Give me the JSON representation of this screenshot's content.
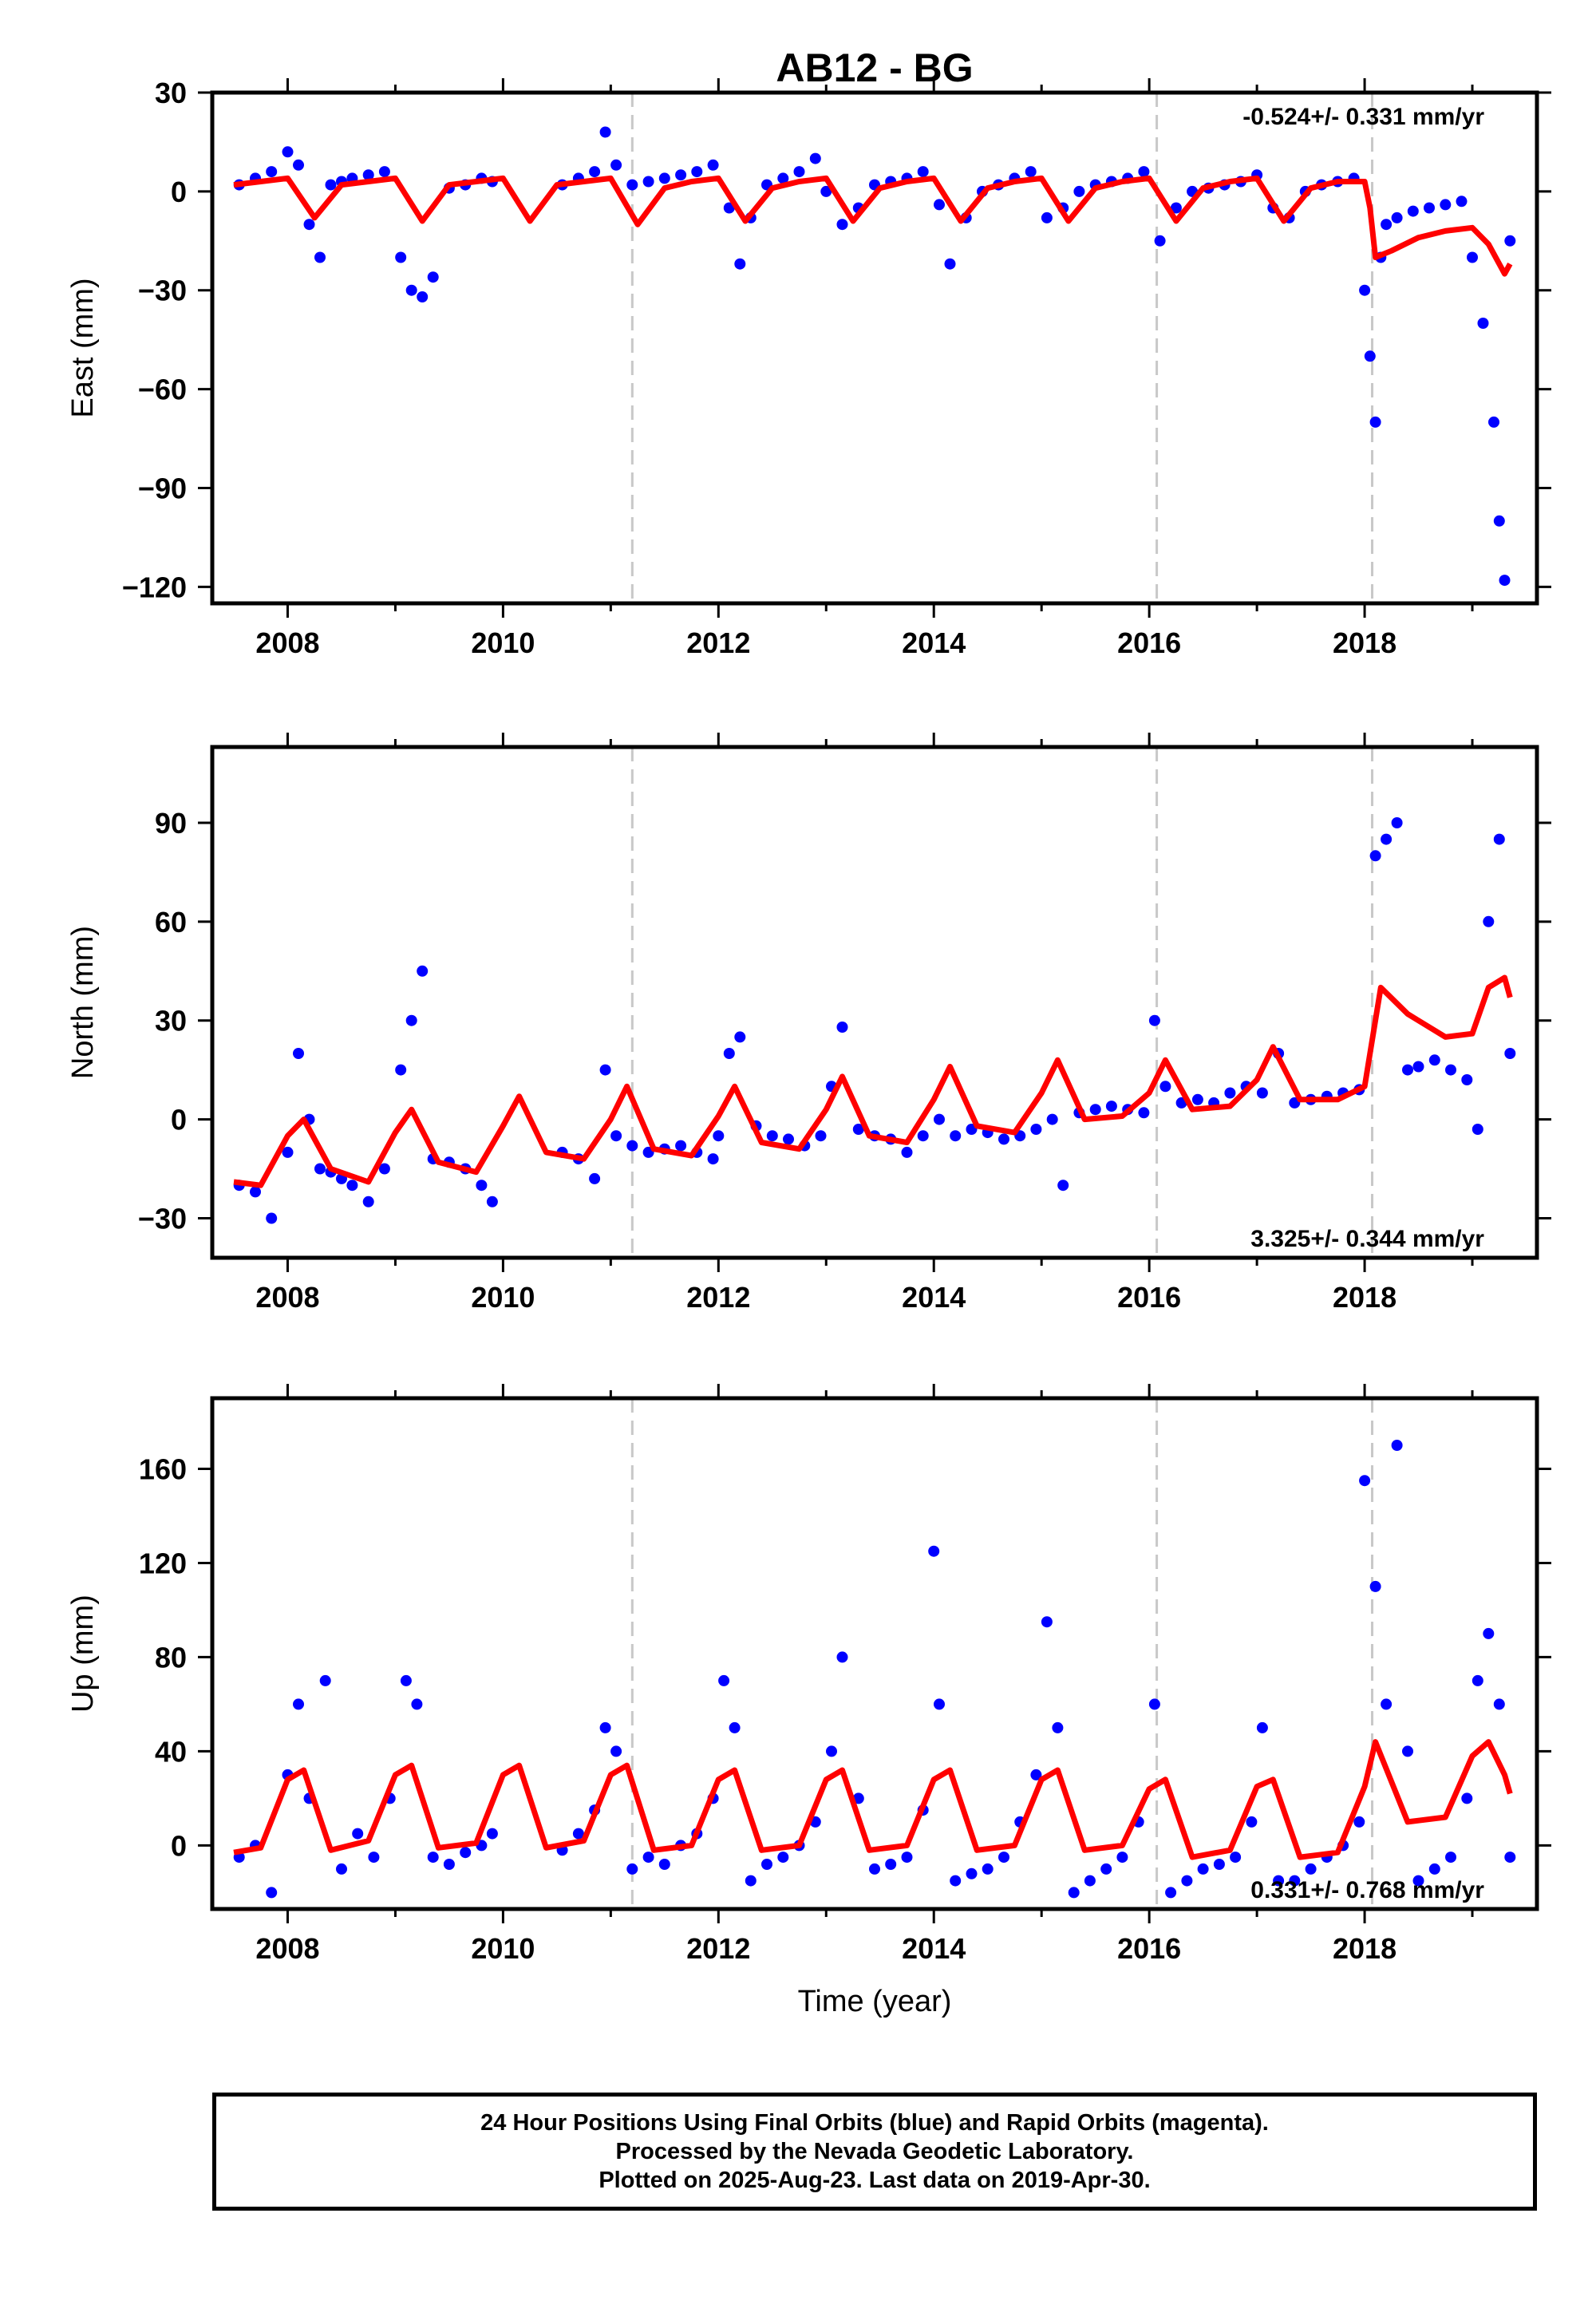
{
  "chart_data": [
    {
      "type": "scatter",
      "title": "AB12 - BG",
      "ylabel": "East (mm)",
      "xlabel": "",
      "ylim": [
        -125,
        30
      ],
      "xlim": [
        2007.3,
        2019.6
      ],
      "yticks": [
        30,
        0,
        -30,
        -60,
        -90,
        -120
      ],
      "xticks": [
        2008,
        2010,
        2012,
        2014,
        2016,
        2018
      ],
      "rate_text": "-0.524+/- 0.331 mm/yr",
      "rate_position": "top-right",
      "grid": false,
      "series": [
        {
          "color": "#0000ff",
          "x": [
            2007.55,
            2007.7,
            2007.85,
            2008.0,
            2008.1,
            2008.2,
            2008.3,
            2008.4,
            2008.5,
            2008.6,
            2008.75,
            2008.9,
            2009.05,
            2009.15,
            2009.25,
            2009.35,
            2009.5,
            2009.65,
            2009.8,
            2009.9,
            2010.55,
            2010.7,
            2010.85,
            2010.95,
            2011.05,
            2011.2,
            2011.35,
            2011.5,
            2011.65,
            2011.8,
            2011.95,
            2012.1,
            2012.2,
            2012.3,
            2012.45,
            2012.6,
            2012.75,
            2012.9,
            2013.0,
            2013.15,
            2013.3,
            2013.45,
            2013.6,
            2013.75,
            2013.9,
            2014.05,
            2014.15,
            2014.3,
            2014.45,
            2014.6,
            2014.75,
            2014.9,
            2015.05,
            2015.2,
            2015.35,
            2015.5,
            2015.65,
            2015.8,
            2015.95,
            2016.1,
            2016.25,
            2016.4,
            2016.55,
            2016.7,
            2016.85,
            2017.0,
            2017.15,
            2017.3,
            2017.45,
            2017.6,
            2017.75,
            2017.9,
            2018.0,
            2018.05,
            2018.1,
            2018.15,
            2018.2,
            2018.3,
            2018.45,
            2018.6,
            2018.75,
            2018.9,
            2019.0,
            2019.1,
            2019.2,
            2019.25,
            2019.3,
            2019.35
          ],
          "y": [
            2,
            4,
            6,
            12,
            8,
            -10,
            -20,
            2,
            3,
            4,
            5,
            6,
            -20,
            -30,
            -32,
            -26,
            1,
            2,
            4,
            3,
            2,
            4,
            6,
            18,
            8,
            2,
            3,
            4,
            5,
            6,
            8,
            -5,
            -22,
            -8,
            2,
            4,
            6,
            10,
            0,
            -10,
            -5,
            2,
            3,
            4,
            6,
            -4,
            -22,
            -8,
            0,
            2,
            4,
            6,
            -8,
            -5,
            0,
            2,
            3,
            4,
            6,
            -15,
            -5,
            0,
            1,
            2,
            3,
            5,
            -5,
            -8,
            0,
            2,
            3,
            4,
            -30,
            -50,
            -70,
            -20,
            -10,
            -8,
            -6,
            -5,
            -4,
            -3,
            -20,
            -40,
            -70,
            -100,
            -118,
            -15
          ]
        },
        {
          "color": "#ff0000",
          "x": [
            2007.5,
            2007.75,
            2008.0,
            2008.25,
            2008.5,
            2008.75,
            2009.0,
            2009.25,
            2009.5,
            2009.75,
            2010.0,
            2010.25,
            2010.5,
            2010.75,
            2011.0,
            2011.25,
            2011.5,
            2011.75,
            2012.0,
            2012.25,
            2012.5,
            2012.75,
            2013.0,
            2013.25,
            2013.5,
            2013.75,
            2014.0,
            2014.25,
            2014.5,
            2014.75,
            2015.0,
            2015.25,
            2015.5,
            2015.75,
            2016.0,
            2016.25,
            2016.5,
            2016.75,
            2017.0,
            2017.25,
            2017.5,
            2017.75,
            2018.0,
            2018.05,
            2018.1,
            2018.25,
            2018.5,
            2018.75,
            2019.0,
            2019.15,
            2019.3,
            2019.35
          ],
          "y": [
            2,
            3,
            4,
            -8,
            2,
            3,
            4,
            -9,
            2,
            3,
            4,
            -9,
            2,
            3,
            4,
            -10,
            1,
            3,
            4,
            -9,
            1,
            3,
            4,
            -9,
            1,
            3,
            4,
            -9,
            1,
            3,
            4,
            -9,
            1,
            3,
            4,
            -9,
            1,
            3,
            4,
            -9,
            1,
            3,
            3,
            -5,
            -20,
            -18,
            -14,
            -12,
            -11,
            -16,
            -25,
            -22
          ]
        }
      ],
      "event_lines_x": [
        2011.2,
        2016.07,
        2018.07
      ]
    },
    {
      "type": "scatter",
      "title": "",
      "ylabel": "North (mm)",
      "xlabel": "",
      "ylim": [
        -42,
        113
      ],
      "xlim": [
        2007.3,
        2019.6
      ],
      "yticks": [
        90,
        60,
        30,
        0,
        -30
      ],
      "xticks": [
        2008,
        2010,
        2012,
        2014,
        2016,
        2018
      ],
      "rate_text": "3.325+/- 0.344 mm/yr",
      "rate_position": "bottom-right",
      "grid": false,
      "series": [
        {
          "color": "#0000ff",
          "x": [
            2007.55,
            2007.7,
            2007.85,
            2008.0,
            2008.1,
            2008.2,
            2008.3,
            2008.4,
            2008.5,
            2008.6,
            2008.75,
            2008.9,
            2009.05,
            2009.15,
            2009.25,
            2009.35,
            2009.5,
            2009.65,
            2009.8,
            2009.9,
            2010.55,
            2010.7,
            2010.85,
            2010.95,
            2011.05,
            2011.2,
            2011.35,
            2011.5,
            2011.65,
            2011.8,
            2011.95,
            2012.0,
            2012.1,
            2012.2,
            2012.35,
            2012.5,
            2012.65,
            2012.8,
            2012.95,
            2013.05,
            2013.15,
            2013.3,
            2013.45,
            2013.6,
            2013.75,
            2013.9,
            2014.05,
            2014.2,
            2014.35,
            2014.5,
            2014.65,
            2014.8,
            2014.95,
            2015.1,
            2015.2,
            2015.35,
            2015.5,
            2015.65,
            2015.8,
            2015.95,
            2016.05,
            2016.15,
            2016.3,
            2016.45,
            2016.6,
            2016.75,
            2016.9,
            2017.05,
            2017.2,
            2017.35,
            2017.5,
            2017.65,
            2017.8,
            2017.95,
            2018.1,
            2018.2,
            2018.3,
            2018.4,
            2018.5,
            2018.65,
            2018.8,
            2018.95,
            2019.05,
            2019.15,
            2019.25,
            2019.35
          ],
          "y": [
            -20,
            -22,
            -30,
            -10,
            20,
            0,
            -15,
            -16,
            -18,
            -20,
            -25,
            -15,
            15,
            30,
            45,
            -12,
            -13,
            -15,
            -20,
            -25,
            -10,
            -12,
            -18,
            15,
            -5,
            -8,
            -10,
            -9,
            -8,
            -10,
            -12,
            -5,
            20,
            25,
            -2,
            -5,
            -6,
            -8,
            -5,
            10,
            28,
            -3,
            -5,
            -6,
            -10,
            -5,
            0,
            -5,
            -3,
            -4,
            -6,
            -5,
            -3,
            0,
            -20,
            2,
            3,
            4,
            3,
            2,
            30,
            10,
            5,
            6,
            5,
            8,
            10,
            8,
            20,
            5,
            6,
            7,
            8,
            9,
            80,
            85,
            90,
            15,
            16,
            18,
            15,
            12,
            -3,
            60,
            85,
            20
          ]
        },
        {
          "color": "#ff0000",
          "x": [
            2007.5,
            2007.75,
            2008.0,
            2008.15,
            2008.4,
            2008.75,
            2009.0,
            2009.15,
            2009.4,
            2009.75,
            2010.0,
            2010.15,
            2010.4,
            2010.75,
            2011.0,
            2011.15,
            2011.4,
            2011.75,
            2012.0,
            2012.15,
            2012.4,
            2012.75,
            2013.0,
            2013.15,
            2013.4,
            2013.75,
            2014.0,
            2014.15,
            2014.4,
            2014.75,
            2015.0,
            2015.15,
            2015.4,
            2015.75,
            2016.0,
            2016.15,
            2016.4,
            2016.75,
            2017.0,
            2017.15,
            2017.4,
            2017.75,
            2018.0,
            2018.05,
            2018.15,
            2018.4,
            2018.75,
            2019.0,
            2019.15,
            2019.3,
            2019.35
          ],
          "y": [
            -19,
            -20,
            -5,
            0,
            -15,
            -19,
            -4,
            3,
            -13,
            -16,
            -2,
            7,
            -10,
            -12,
            0,
            10,
            -9,
            -11,
            1,
            10,
            -7,
            -9,
            3,
            13,
            -5,
            -7,
            6,
            16,
            -2,
            -4,
            8,
            18,
            0,
            1,
            8,
            18,
            3,
            4,
            12,
            22,
            6,
            6,
            10,
            20,
            40,
            32,
            25,
            26,
            40,
            43,
            37
          ]
        }
      ],
      "event_lines_x": [
        2011.2,
        2016.07,
        2018.07
      ]
    },
    {
      "type": "scatter",
      "title": "",
      "ylabel": "Up (mm)",
      "xlabel": "Time (year)",
      "ylim": [
        -27,
        190
      ],
      "xlim": [
        2007.3,
        2019.6
      ],
      "yticks": [
        160,
        120,
        80,
        40,
        0
      ],
      "xticks": [
        2008,
        2010,
        2012,
        2014,
        2016,
        2018
      ],
      "rate_text": "0.331+/- 0.768 mm/yr",
      "rate_position": "bottom-right",
      "grid": false,
      "series": [
        {
          "color": "#0000ff",
          "x": [
            2007.55,
            2007.7,
            2007.85,
            2008.0,
            2008.1,
            2008.2,
            2008.35,
            2008.5,
            2008.65,
            2008.8,
            2008.95,
            2009.1,
            2009.2,
            2009.35,
            2009.5,
            2009.65,
            2009.8,
            2009.9,
            2010.55,
            2010.7,
            2010.85,
            2010.95,
            2011.05,
            2011.2,
            2011.35,
            2011.5,
            2011.65,
            2011.8,
            2011.95,
            2012.05,
            2012.15,
            2012.3,
            2012.45,
            2012.6,
            2012.75,
            2012.9,
            2013.05,
            2013.15,
            2013.3,
            2013.45,
            2013.6,
            2013.75,
            2013.9,
            2014.0,
            2014.05,
            2014.2,
            2014.35,
            2014.5,
            2014.65,
            2014.8,
            2014.95,
            2015.05,
            2015.15,
            2015.3,
            2015.45,
            2015.6,
            2015.75,
            2015.9,
            2016.05,
            2016.2,
            2016.35,
            2016.5,
            2016.65,
            2016.8,
            2016.95,
            2017.05,
            2017.2,
            2017.35,
            2017.5,
            2017.65,
            2017.8,
            2017.95,
            2018.0,
            2018.1,
            2018.2,
            2018.3,
            2018.4,
            2018.5,
            2018.65,
            2018.8,
            2018.95,
            2019.05,
            2019.15,
            2019.25,
            2019.35
          ],
          "y": [
            -5,
            0,
            -20,
            30,
            60,
            20,
            70,
            -10,
            5,
            -5,
            20,
            70,
            60,
            -5,
            -8,
            -3,
            0,
            5,
            -2,
            5,
            15,
            50,
            40,
            -10,
            -5,
            -8,
            0,
            5,
            20,
            70,
            50,
            -15,
            -8,
            -5,
            0,
            10,
            40,
            80,
            20,
            -10,
            -8,
            -5,
            15,
            125,
            60,
            -15,
            -12,
            -10,
            -5,
            10,
            30,
            95,
            50,
            -20,
            -15,
            -10,
            -5,
            10,
            60,
            -20,
            -15,
            -10,
            -8,
            -5,
            10,
            50,
            -15,
            -15,
            -10,
            -5,
            0,
            10,
            155,
            110,
            60,
            170,
            40,
            -15,
            -10,
            -5,
            20,
            70,
            90,
            60,
            -5
          ]
        },
        {
          "color": "#ff0000",
          "x": [
            2007.5,
            2007.75,
            2008.0,
            2008.15,
            2008.4,
            2008.75,
            2009.0,
            2009.15,
            2009.4,
            2009.75,
            2010.0,
            2010.15,
            2010.4,
            2010.75,
            2011.0,
            2011.15,
            2011.4,
            2011.75,
            2012.0,
            2012.15,
            2012.4,
            2012.75,
            2013.0,
            2013.15,
            2013.4,
            2013.75,
            2014.0,
            2014.15,
            2014.4,
            2014.75,
            2015.0,
            2015.15,
            2015.4,
            2015.75,
            2016.0,
            2016.15,
            2016.4,
            2016.75,
            2017.0,
            2017.15,
            2017.4,
            2017.75,
            2018.0,
            2018.1,
            2018.4,
            2018.75,
            2019.0,
            2019.15,
            2019.3,
            2019.35
          ],
          "y": [
            -3,
            -1,
            28,
            32,
            -2,
            2,
            30,
            34,
            -1,
            1,
            30,
            34,
            -1,
            2,
            30,
            34,
            -2,
            0,
            28,
            32,
            -2,
            0,
            28,
            32,
            -2,
            0,
            28,
            32,
            -2,
            0,
            28,
            32,
            -2,
            0,
            24,
            28,
            -5,
            -2,
            25,
            28,
            -5,
            -3,
            25,
            44,
            10,
            12,
            38,
            44,
            30,
            22
          ]
        }
      ],
      "event_lines_x": [
        2011.2,
        2016.07,
        2018.07
      ]
    }
  ],
  "footer": {
    "line1": "24 Hour Positions Using Final Orbits (blue) and Rapid Orbits (magenta).",
    "line2": "Processed by the Nevada Geodetic Laboratory.",
    "line3": "Plotted on 2025-Aug-23. Last data on 2019-Apr-30."
  }
}
